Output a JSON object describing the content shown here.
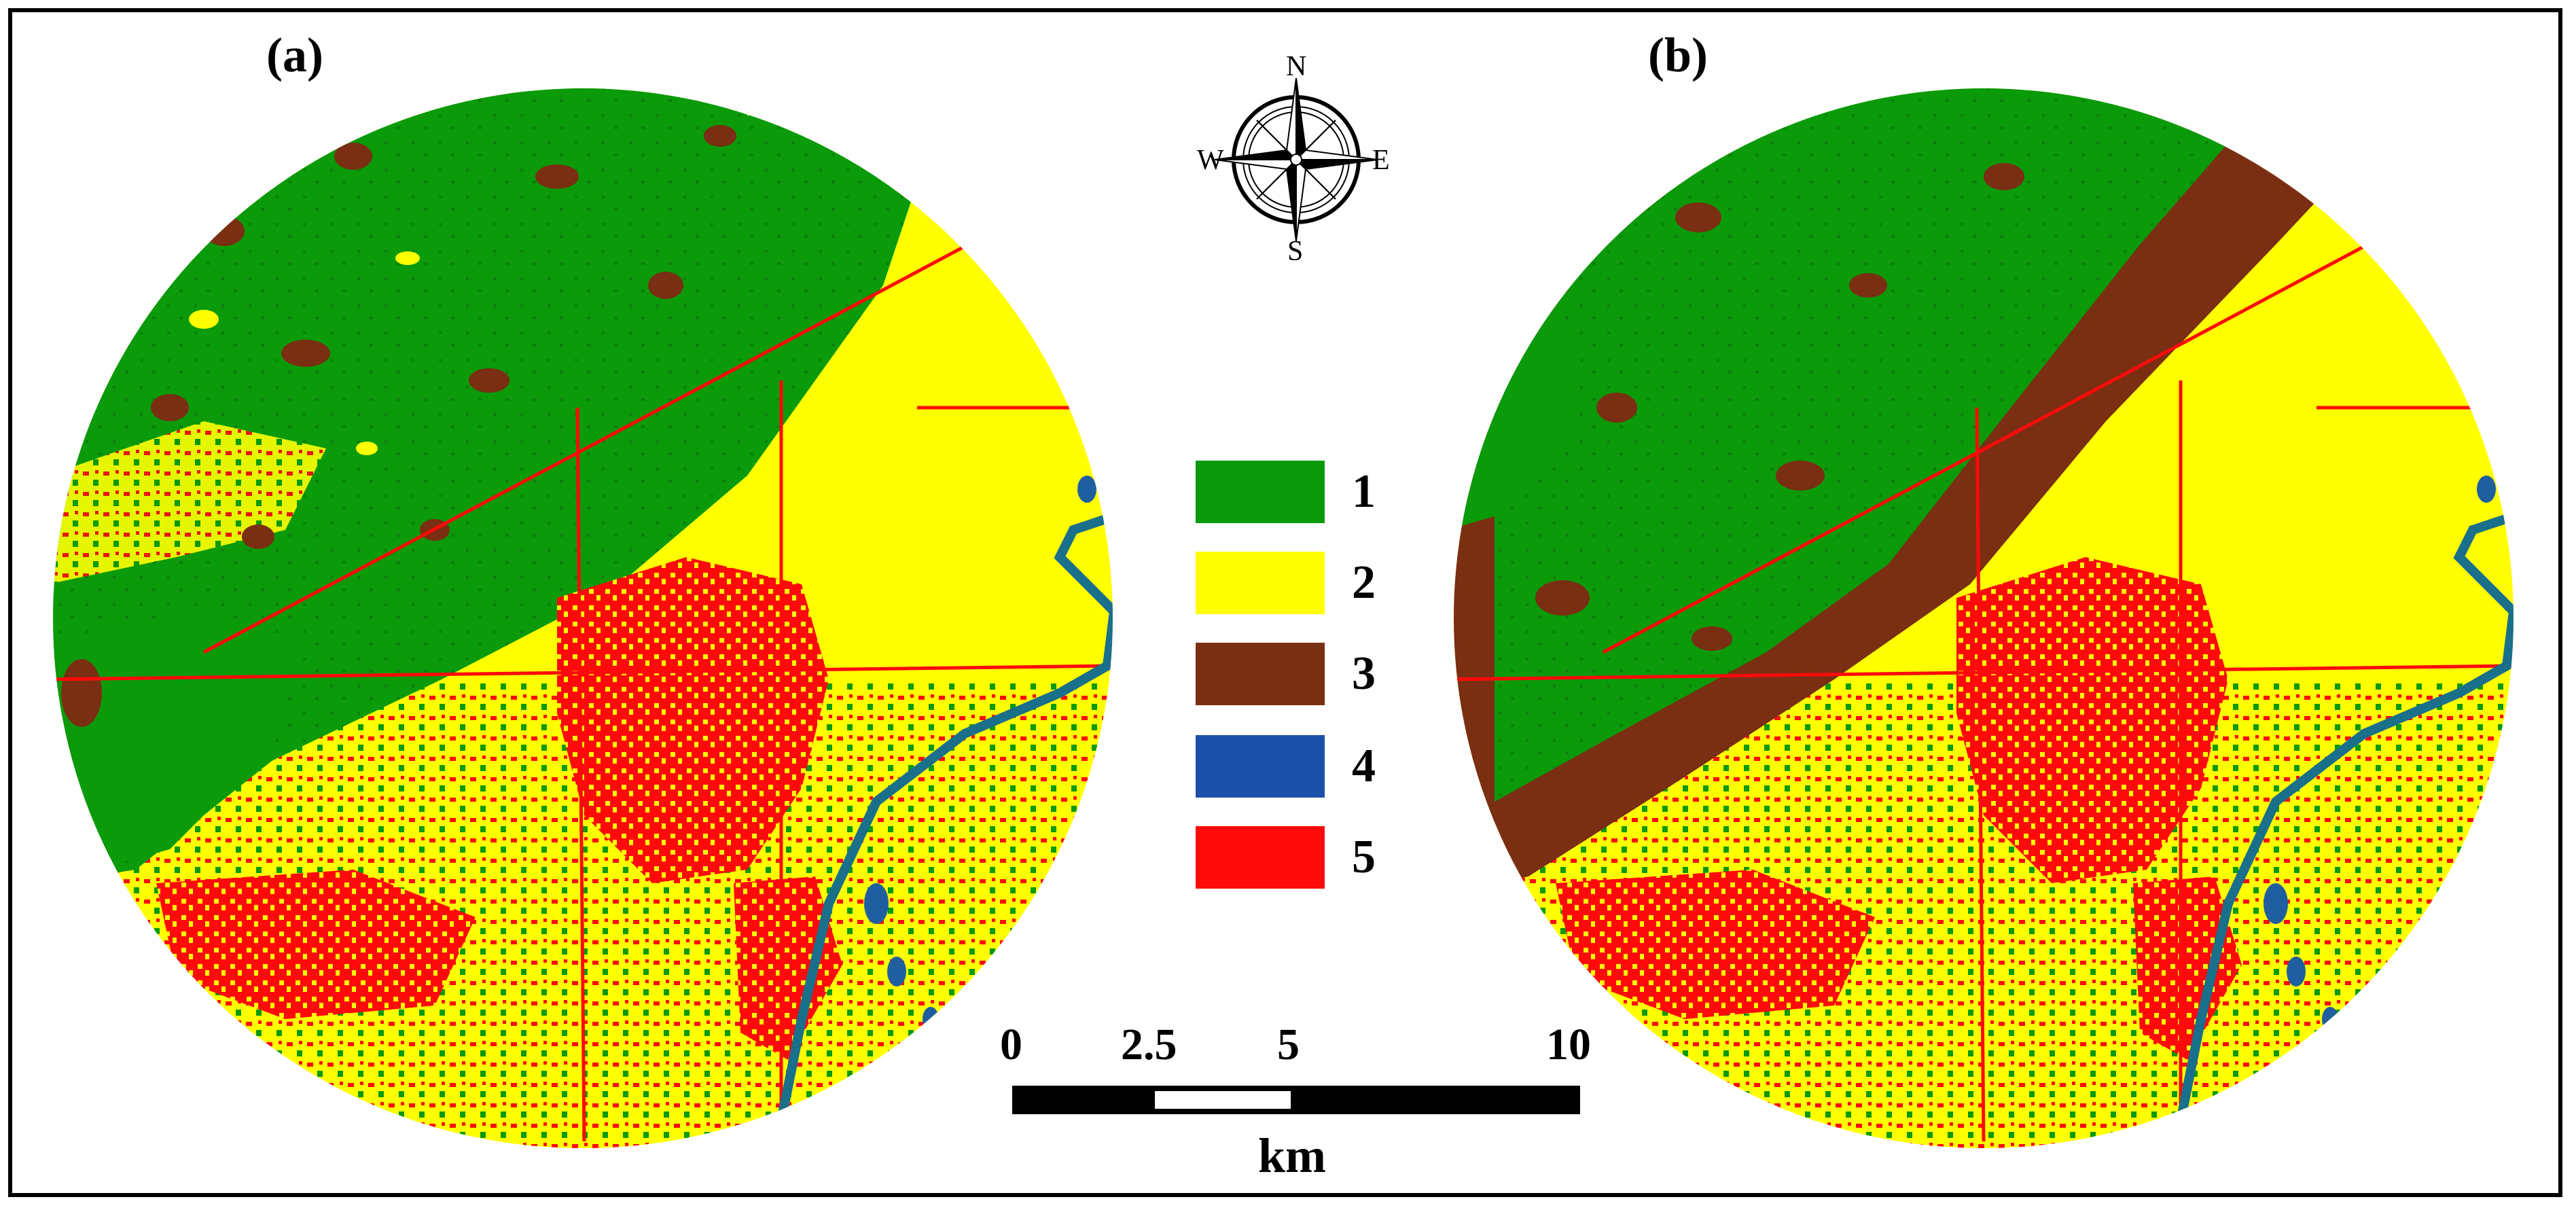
{
  "panels": [
    {
      "label": "(a)"
    },
    {
      "label": "(b)"
    }
  ],
  "compass": {
    "north": "N",
    "south": "S",
    "east": "E",
    "west": "W"
  },
  "legend": [
    {
      "label": "1",
      "color": "#0a9a0a"
    },
    {
      "label": "2",
      "color": "#ffff00"
    },
    {
      "label": "3",
      "color": "#7a2e12"
    },
    {
      "label": "4",
      "color": "#1c4fa8"
    },
    {
      "label": "5",
      "color": "#ff0a0a"
    }
  ],
  "scale_bar": {
    "ticks": [
      "0",
      "2.5",
      "5",
      "10"
    ],
    "unit": "km"
  },
  "colors": {
    "water": "#1f5fa0",
    "river": "#1a6f8a",
    "frame": "#000000"
  }
}
